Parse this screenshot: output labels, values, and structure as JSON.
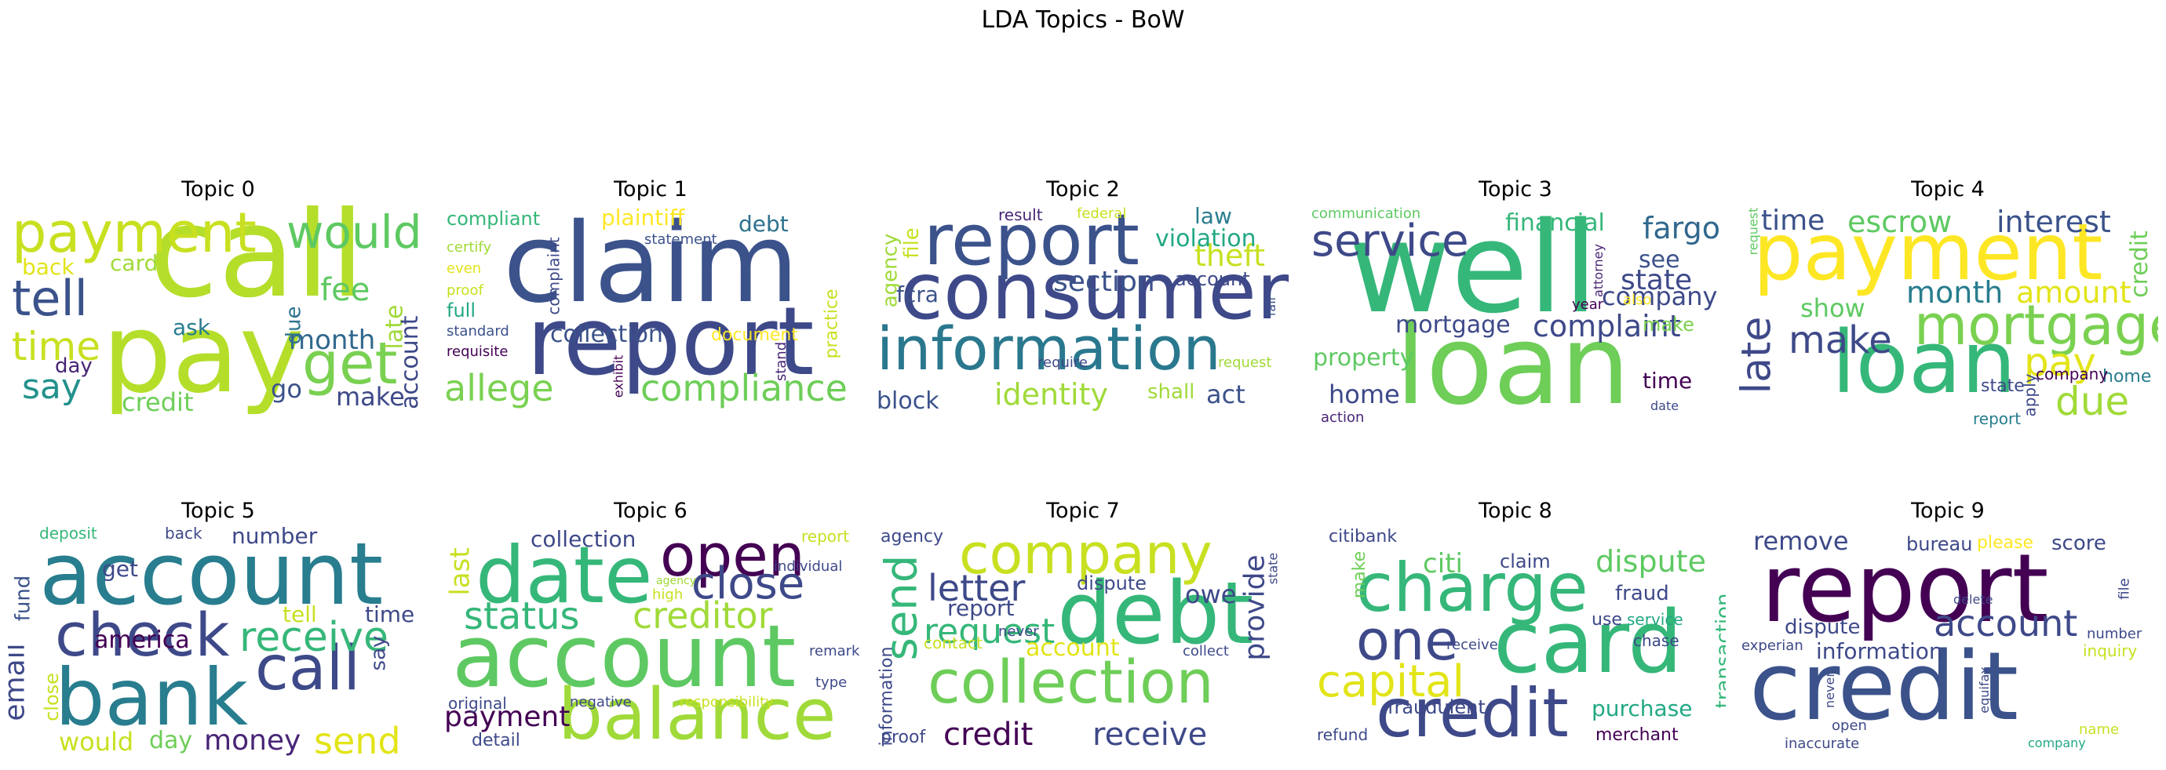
{
  "figure": {
    "title": "LDA Topics - BoW"
  },
  "topics": [
    {
      "title": "Topic 0",
      "words": [
        "call",
        "pay",
        "payment",
        "would",
        "tell",
        "get",
        "time",
        "say",
        "fee",
        "month",
        "late",
        "account",
        "back",
        "card",
        "ask",
        "due",
        "day",
        "go",
        "make",
        "credit"
      ]
    },
    {
      "title": "Topic 1",
      "words": [
        "claim",
        "report",
        "allege",
        "compliance",
        "compliant",
        "plaintiff",
        "debt",
        "statement",
        "certify",
        "even",
        "proof",
        "full",
        "standard",
        "requisite",
        "complaint",
        "collection",
        "document",
        "exhibit",
        "stand",
        "practice"
      ]
    },
    {
      "title": "Topic 2",
      "words": [
        "consumer",
        "report",
        "information",
        "identity",
        "section",
        "theft",
        "violation",
        "law",
        "account",
        "result",
        "federal",
        "file",
        "agency",
        "fcra",
        "block",
        "shall",
        "act",
        "require",
        "request",
        "fair"
      ]
    },
    {
      "title": "Topic 3",
      "words": [
        "well",
        "loan",
        "service",
        "financial",
        "fargo",
        "see",
        "state",
        "company",
        "complaint",
        "mortgage",
        "property",
        "home",
        "time",
        "make",
        "communication",
        "attorney",
        "year",
        "also",
        "action",
        "date"
      ]
    },
    {
      "title": "Topic 4",
      "words": [
        "payment",
        "loan",
        "mortgage",
        "late",
        "make",
        "escrow",
        "interest",
        "time",
        "show",
        "month",
        "amount",
        "credit",
        "pay",
        "due",
        "home",
        "state",
        "company",
        "apply",
        "report",
        "request"
      ]
    },
    {
      "title": "Topic 5",
      "words": [
        "account",
        "bank",
        "check",
        "call",
        "receive",
        "email",
        "fund",
        "money",
        "send",
        "america",
        "deposit",
        "back",
        "number",
        "get",
        "tell",
        "time",
        "close",
        "say",
        "would",
        "day"
      ]
    },
    {
      "title": "Topic 6",
      "words": [
        "account",
        "date",
        "balance",
        "open",
        "close",
        "status",
        "creditor",
        "collection",
        "report",
        "individual",
        "high",
        "agency",
        "last",
        "remark",
        "type",
        "payment",
        "original",
        "negative",
        "detail",
        "responsibility"
      ]
    },
    {
      "title": "Topic 7",
      "words": [
        "debt",
        "collection",
        "company",
        "send",
        "letter",
        "request",
        "report",
        "provide",
        "credit",
        "receive",
        "owe",
        "dispute",
        "agency",
        "state",
        "account",
        "contact",
        "never",
        "collect",
        "information",
        "proof"
      ]
    },
    {
      "title": "Topic 8",
      "words": [
        "card",
        "credit",
        "charge",
        "one",
        "capital",
        "dispute",
        "citi",
        "claim",
        "citibank",
        "fraud",
        "make",
        "use",
        "receive",
        "service",
        "chase",
        "fraudulent",
        "purchase",
        "transaction",
        "refund",
        "merchant"
      ]
    },
    {
      "title": "Topic 9",
      "words": [
        "credit",
        "report",
        "account",
        "remove",
        "bureau",
        "please",
        "score",
        "dispute",
        "information",
        "delete",
        "file",
        "experian",
        "number",
        "inquiry",
        "never",
        "equifax",
        "open",
        "inaccurate",
        "company",
        "name"
      ]
    }
  ]
}
